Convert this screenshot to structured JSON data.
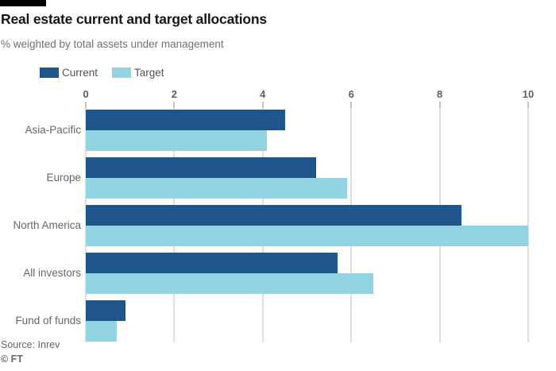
{
  "header": {
    "title": "Real estate current and target allocations",
    "subtitle": "% weighted by total assets under management"
  },
  "legend": [
    {
      "label": "Current",
      "color": "#1e568c"
    },
    {
      "label": "Target",
      "color": "#92d3e4"
    }
  ],
  "chart_data": {
    "type": "bar",
    "orientation": "horizontal",
    "title": "Real estate current and target allocations",
    "subtitle": "% weighted by total assets under management",
    "categories": [
      "Asia-Pacific",
      "Europe",
      "North America",
      "All investors",
      "Fund of funds"
    ],
    "series": [
      {
        "name": "Current",
        "color": "#1e568c",
        "values": [
          4.5,
          5.2,
          8.5,
          5.7,
          0.9
        ]
      },
      {
        "name": "Target",
        "color": "#92d3e4",
        "values": [
          4.1,
          5.9,
          10.0,
          6.5,
          0.7
        ]
      }
    ],
    "xticks": [
      0,
      2,
      4,
      6,
      8,
      10
    ],
    "xlim": [
      0,
      10
    ],
    "grid": true,
    "legend_position": "top-left"
  },
  "footer": {
    "source": "Source: Inrev",
    "credit": "© FT"
  },
  "colors": {
    "current_bar": "#1e568c",
    "target_bar": "#92d3e4",
    "gridline": "#e7dfd3",
    "tick": "#cfc4b6",
    "axis_text": "#665f58",
    "title_text": "#181614",
    "subtitle_text": "#757069"
  }
}
